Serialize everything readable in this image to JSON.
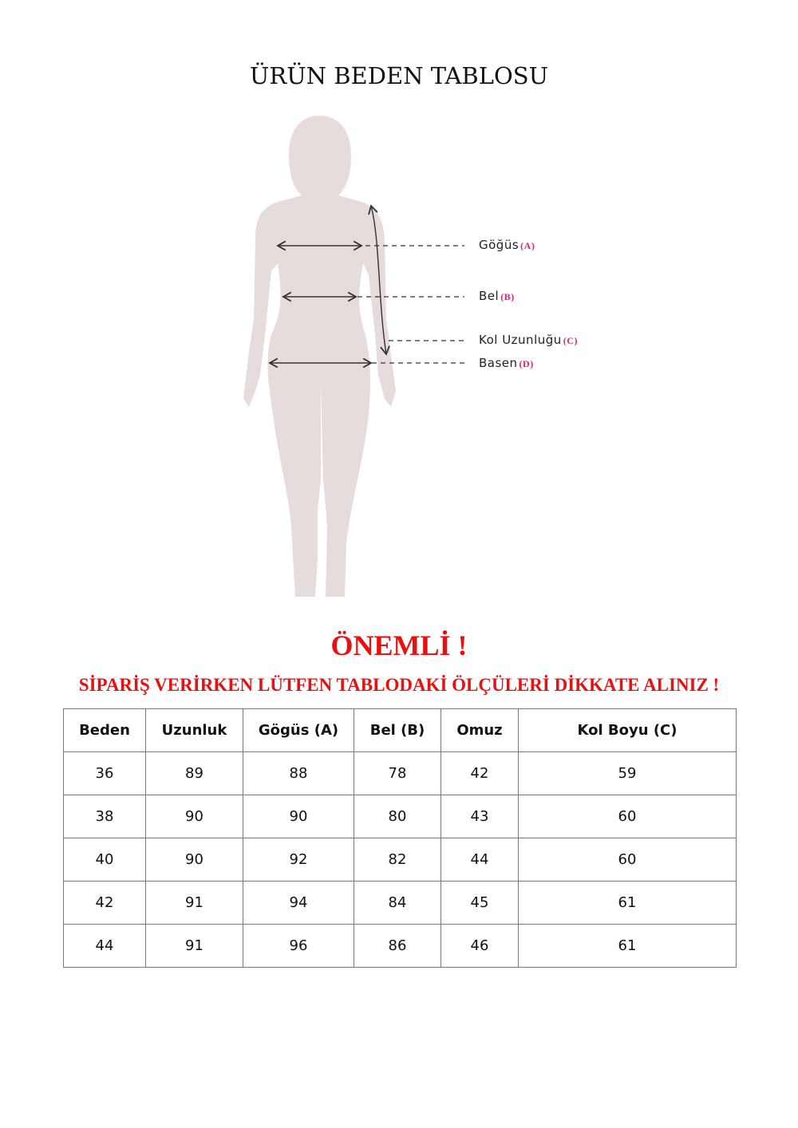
{
  "title": "ÜRÜN BEDEN TABLOSU",
  "figure": {
    "labels": [
      {
        "text": "Göğüs",
        "key": "(A)"
      },
      {
        "text": "Bel",
        "key": "(B)"
      },
      {
        "text": "Kol Uzunluğu",
        "key": "(C)"
      },
      {
        "text": "Basen",
        "key": "(D)"
      }
    ],
    "silhouette_color": "#e6dcdc",
    "key_color": "#e0207a"
  },
  "important": "ÖNEMLİ !",
  "warning": "SİPARİŞ VERİRKEN LÜTFEN TABLODAKİ ÖLÇÜLERİ DİKKATE ALINIZ !",
  "table": {
    "headers": [
      "Beden",
      "Uzunluk",
      "Gögüs (A)",
      "Bel (B)",
      "Omuz",
      "Kol Boyu (C)"
    ],
    "rows": [
      [
        "36",
        "89",
        "88",
        "78",
        "42",
        "59"
      ],
      [
        "38",
        "90",
        "90",
        "80",
        "43",
        "60"
      ],
      [
        "40",
        "90",
        "92",
        "82",
        "44",
        "60"
      ],
      [
        "42",
        "91",
        "94",
        "84",
        "45",
        "61"
      ],
      [
        "44",
        "91",
        "96",
        "86",
        "46",
        "61"
      ]
    ]
  }
}
